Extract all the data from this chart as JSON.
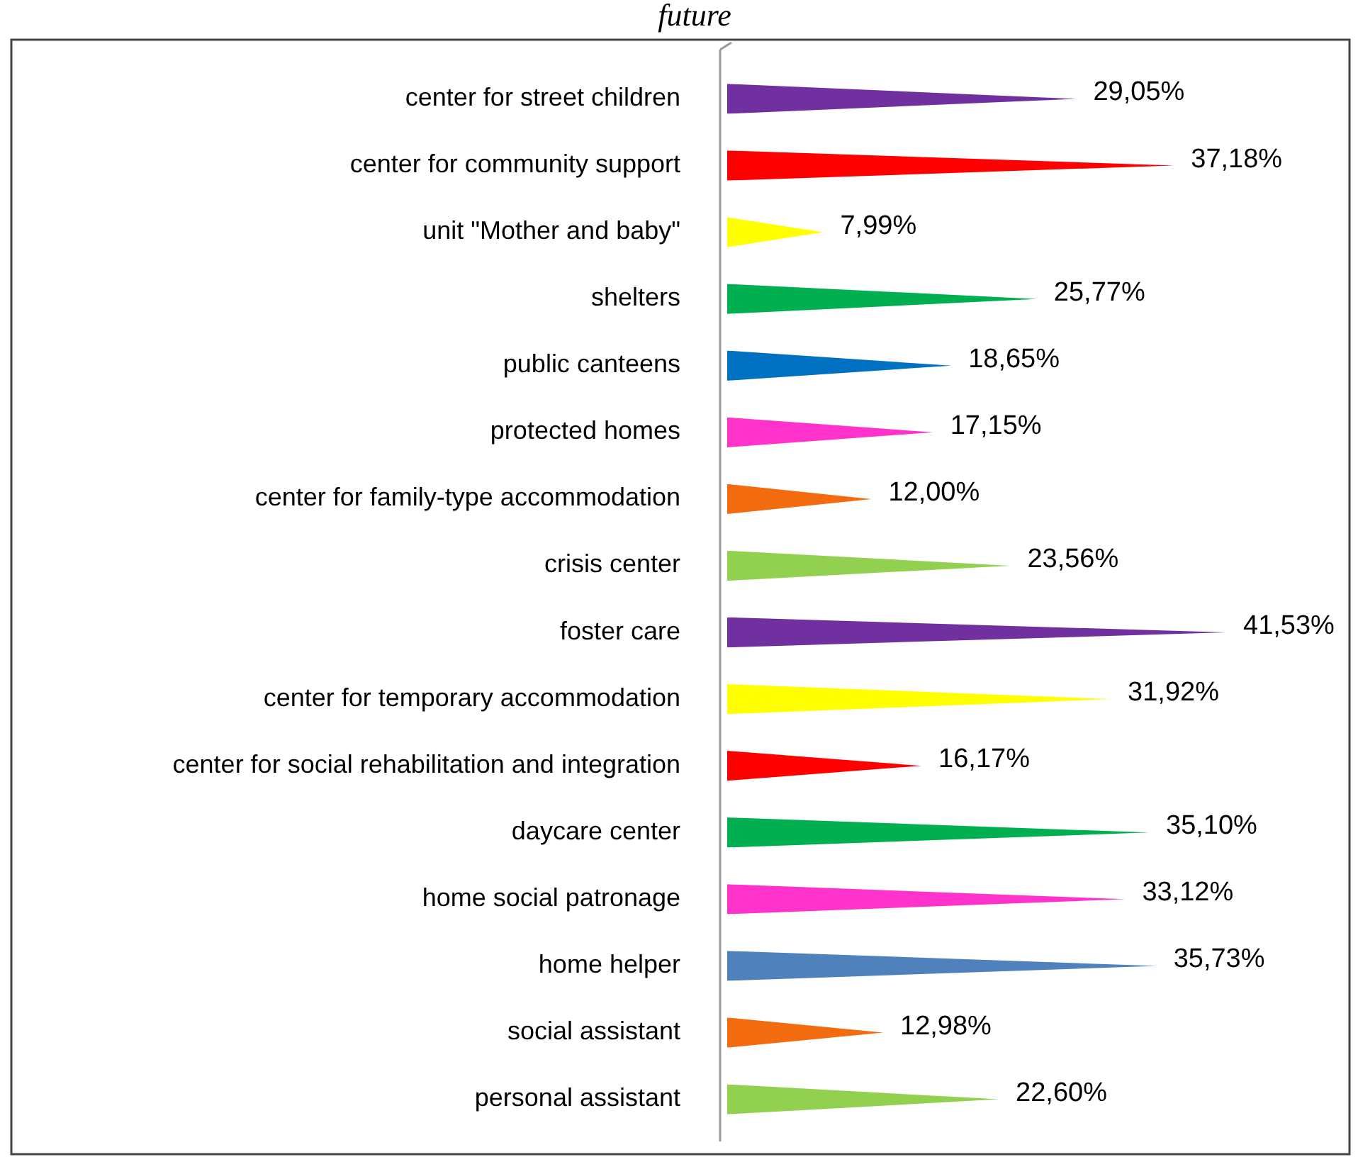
{
  "chart_data": {
    "type": "bar",
    "orientation": "horizontal",
    "title": "future",
    "categories": [
      "center for street children",
      "center for community support",
      "unit \"Mother and baby\"",
      "shelters",
      "public canteens",
      "protected homes",
      "center for family-type accommodation",
      "crisis center",
      "foster care",
      "center for temporary accommodation",
      "center for social rehabilitation and integration",
      "daycare center",
      "home social patronage",
      "home helper",
      "social assistant",
      "personal assistant"
    ],
    "values": [
      29.05,
      37.18,
      7.99,
      25.77,
      18.65,
      17.15,
      12.0,
      23.56,
      41.53,
      31.92,
      16.17,
      35.1,
      33.12,
      35.73,
      12.98,
      22.6
    ],
    "value_labels": [
      "29,05%",
      "37,18%",
      "7,99%",
      "25,77%",
      "18,65%",
      "17,15%",
      "12,00%",
      "23,56%",
      "41,53%",
      "31,92%",
      "16,17%",
      "35,10%",
      "33,12%",
      "35,73%",
      "12,98%",
      "22,60%"
    ],
    "colors": [
      "#7030a0",
      "#ff0000",
      "#ffff00",
      "#00b050",
      "#0070c0",
      "#ff33cc",
      "#f26b0f",
      "#92d050",
      "#7030a0",
      "#ffff00",
      "#ff0000",
      "#00b050",
      "#ff33cc",
      "#4f81bd",
      "#f26b0f",
      "#92d050"
    ],
    "grid": false
  }
}
